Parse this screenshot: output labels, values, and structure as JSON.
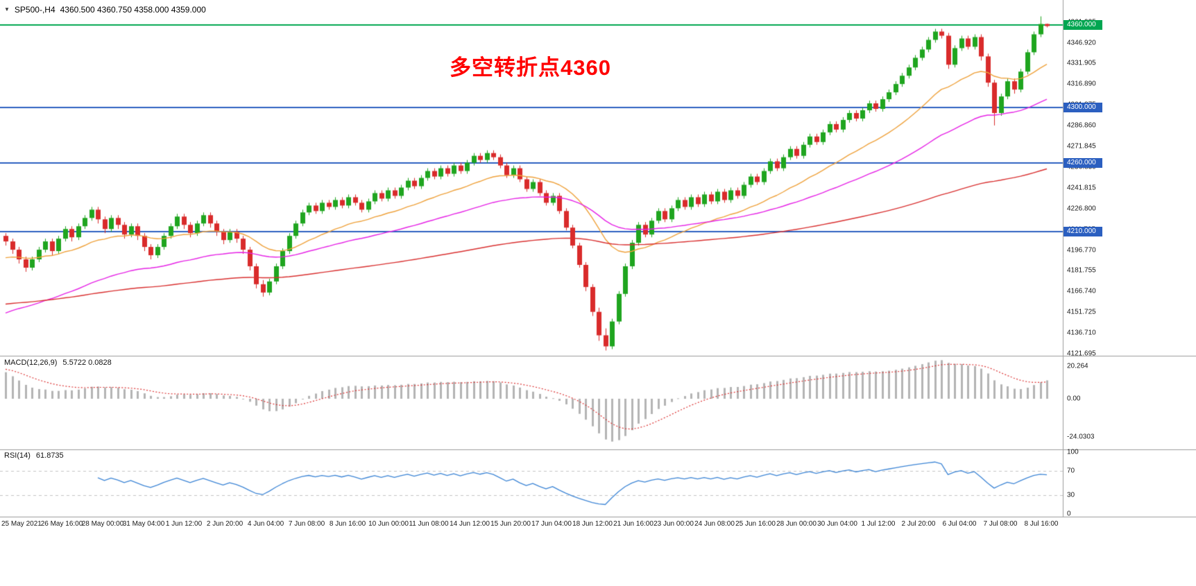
{
  "chart": {
    "symbol_period": "SP500-,H4",
    "ohlc_line": "4360.500 4360.750 4358.000 4359.000",
    "icons": {
      "menu": "▼"
    },
    "annotation": {
      "text": "多空转折点4360",
      "color": "#ff0000"
    }
  },
  "chart_data": {
    "type": "candlestick",
    "symbol": "SP500-",
    "timeframe": "H4",
    "title": "SP500-,H4 4360.500 4360.750 4358.000 4359.000",
    "current_bar": {
      "open": 4360.5,
      "high": 4360.75,
      "low": 4358.0,
      "close": 4359.0
    },
    "colors": {
      "up": "#1fa51f",
      "down": "#d92b2b",
      "background": "#ffffff"
    },
    "price_axis": {
      "top_price": 4363.8,
      "bottom_price": 4121.695,
      "labels": [
        "4361.935",
        "4346.920",
        "4331.905",
        "4316.890",
        "4301.875",
        "4286.860",
        "4271.845",
        "4256.830",
        "4241.815",
        "4226.800",
        "4211.785",
        "4196.770",
        "4181.755",
        "4166.740",
        "4151.725",
        "4136.710",
        "4121.695"
      ]
    },
    "time_labels": [
      "25 May 2021",
      "26 May 16:00",
      "28 May 00:00",
      "31 May 04:00",
      "1 Jun 12:00",
      "2 Jun 20:00",
      "4 Jun 04:00",
      "7 Jun 08:00",
      "8 Jun 16:00",
      "10 Jun 00:00",
      "11 Jun 08:00",
      "14 Jun 12:00",
      "15 Jun 20:00",
      "17 Jun 04:00",
      "18 Jun 12:00",
      "21 Jun 16:00",
      "23 Jun 00:00",
      "24 Jun 08:00",
      "25 Jun 16:00",
      "28 Jun 00:00",
      "30 Jun 04:00",
      "1 Jul 12:00",
      "2 Jul 20:00",
      "6 Jul 04:00",
      "7 Jul 08:00",
      "8 Jul 16:00"
    ],
    "horizontal_lines": [
      {
        "price": 4360.0,
        "label": "4360.000",
        "color": "#00a651"
      },
      {
        "price": 4300.0,
        "label": "4300.000",
        "color": "#2b5fc0"
      },
      {
        "price": 4260.0,
        "label": "4260.000",
        "color": "#2b5fc0"
      },
      {
        "price": 4210.0,
        "label": "4210.000",
        "color": "#2b5fc0"
      }
    ],
    "moving_averages": [
      {
        "period": 21,
        "color": "#efa23c",
        "seed": 4190
      },
      {
        "period": 50,
        "color": "#e623e6",
        "seed": 4149
      },
      {
        "period": 150,
        "color": "#d93030",
        "seed": 4157
      }
    ],
    "indicators": {
      "macd": {
        "label": "MACD(12,26,9)",
        "values": "5.5722 0.0828",
        "fast": 12,
        "slow": 26,
        "signal": 9,
        "seed_fast": 4215,
        "seed_slow": 4196,
        "seed_signal": 19,
        "histogram_color": "#b4b4b4",
        "signal_color": "#dd3333",
        "axis_labels": [
          {
            "value": 20.264,
            "text": "20.264"
          },
          {
            "value": 0,
            "text": "0.00"
          },
          {
            "value": -24.0303,
            "text": "-24.0303"
          }
        ]
      },
      "rsi": {
        "label": "RSI(14)",
        "value": "61.8735",
        "period": 14,
        "line_color": "#3e86d6",
        "levels": [
          70,
          30
        ],
        "axis_labels": [
          {
            "value": 100,
            "text": "100"
          },
          {
            "value": 70,
            "text": "70"
          },
          {
            "value": 30,
            "text": "30"
          },
          {
            "value": 0,
            "text": "0"
          }
        ]
      }
    },
    "candles": [
      [
        4207,
        4209,
        4200,
        4203
      ],
      [
        4203,
        4205,
        4194,
        4197
      ],
      [
        4197,
        4199,
        4187,
        4190
      ],
      [
        4190,
        4192,
        4181,
        4184
      ],
      [
        4184,
        4192,
        4182,
        4190
      ],
      [
        4190,
        4199,
        4188,
        4197
      ],
      [
        4197,
        4205,
        4195,
        4203
      ],
      [
        4203,
        4205,
        4193,
        4196
      ],
      [
        4196,
        4207,
        4194,
        4205
      ],
      [
        4205,
        4214,
        4203,
        4212
      ],
      [
        4212,
        4214,
        4203,
        4206
      ],
      [
        4206,
        4216,
        4204,
        4214
      ],
      [
        4214,
        4222,
        4212,
        4220
      ],
      [
        4220,
        4228,
        4218,
        4226
      ],
      [
        4226,
        4228,
        4216,
        4219
      ],
      [
        4219,
        4221,
        4209,
        4212
      ],
      [
        4212,
        4222,
        4210,
        4220
      ],
      [
        4220,
        4222,
        4212,
        4215
      ],
      [
        4215,
        4217,
        4205,
        4208
      ],
      [
        4208,
        4216,
        4206,
        4214
      ],
      [
        4214,
        4216,
        4204,
        4207
      ],
      [
        4207,
        4209,
        4196,
        4199
      ],
      [
        4199,
        4201,
        4190,
        4193
      ],
      [
        4193,
        4201,
        4191,
        4199
      ],
      [
        4199,
        4209,
        4197,
        4207
      ],
      [
        4207,
        4216,
        4205,
        4214
      ],
      [
        4214,
        4223,
        4212,
        4221
      ],
      [
        4221,
        4223,
        4212,
        4215
      ],
      [
        4215,
        4217,
        4206,
        4209
      ],
      [
        4209,
        4218,
        4207,
        4216
      ],
      [
        4216,
        4224,
        4214,
        4222
      ],
      [
        4222,
        4224,
        4213,
        4216
      ],
      [
        4216,
        4218,
        4207,
        4210
      ],
      [
        4210,
        4212,
        4201,
        4204
      ],
      [
        4204,
        4212,
        4202,
        4210
      ],
      [
        4210,
        4212,
        4202,
        4205
      ],
      [
        4205,
        4207,
        4194,
        4197
      ],
      [
        4197,
        4199,
        4182,
        4185
      ],
      [
        4185,
        4187,
        4169,
        4172
      ],
      [
        4172,
        4175,
        4163,
        4166
      ],
      [
        4166,
        4176,
        4164,
        4174
      ],
      [
        4174,
        4187,
        4172,
        4185
      ],
      [
        4185,
        4198,
        4183,
        4196
      ],
      [
        4196,
        4209,
        4194,
        4207
      ],
      [
        4207,
        4218,
        4205,
        4216
      ],
      [
        4216,
        4226,
        4214,
        4224
      ],
      [
        4224,
        4231,
        4222,
        4229
      ],
      [
        4229,
        4231,
        4223,
        4225
      ],
      [
        4225,
        4233,
        4223,
        4231
      ],
      [
        4231,
        4233,
        4226,
        4228
      ],
      [
        4228,
        4235,
        4226,
        4233
      ],
      [
        4233,
        4235,
        4227,
        4229
      ],
      [
        4229,
        4237,
        4227,
        4235
      ],
      [
        4235,
        4237,
        4229,
        4231
      ],
      [
        4231,
        4233,
        4224,
        4226
      ],
      [
        4226,
        4234,
        4224,
        4232
      ],
      [
        4232,
        4240,
        4230,
        4238
      ],
      [
        4238,
        4240,
        4232,
        4234
      ],
      [
        4234,
        4242,
        4232,
        4240
      ],
      [
        4240,
        4242,
        4234,
        4236
      ],
      [
        4236,
        4244,
        4234,
        4242
      ],
      [
        4242,
        4249,
        4240,
        4247
      ],
      [
        4247,
        4249,
        4241,
        4243
      ],
      [
        4243,
        4251,
        4241,
        4249
      ],
      [
        4249,
        4256,
        4247,
        4254
      ],
      [
        4254,
        4256,
        4248,
        4250
      ],
      [
        4250,
        4258,
        4248,
        4256
      ],
      [
        4256,
        4258,
        4250,
        4252
      ],
      [
        4252,
        4260,
        4250,
        4258
      ],
      [
        4258,
        4260,
        4252,
        4254
      ],
      [
        4254,
        4262,
        4252,
        4260
      ],
      [
        4260,
        4267,
        4258,
        4265
      ],
      [
        4265,
        4267,
        4260,
        4262
      ],
      [
        4262,
        4269,
        4260,
        4267
      ],
      [
        4267,
        4269,
        4262,
        4264
      ],
      [
        4264,
        4266,
        4256,
        4258
      ],
      [
        4258,
        4260,
        4249,
        4251
      ],
      [
        4251,
        4258,
        4249,
        4256
      ],
      [
        4256,
        4258,
        4246,
        4248
      ],
      [
        4248,
        4250,
        4239,
        4241
      ],
      [
        4241,
        4248,
        4239,
        4246
      ],
      [
        4246,
        4248,
        4236,
        4238
      ],
      [
        4238,
        4240,
        4229,
        4231
      ],
      [
        4231,
        4238,
        4229,
        4236
      ],
      [
        4236,
        4238,
        4223,
        4225
      ],
      [
        4225,
        4227,
        4211,
        4213
      ],
      [
        4213,
        4215,
        4198,
        4200
      ],
      [
        4200,
        4202,
        4184,
        4186
      ],
      [
        4186,
        4188,
        4167,
        4170
      ],
      [
        4170,
        4172,
        4149,
        4152
      ],
      [
        4152,
        4155,
        4131,
        4135
      ],
      [
        4135,
        4140,
        4124,
        4127
      ],
      [
        4127,
        4147,
        4125,
        4145
      ],
      [
        4145,
        4167,
        4143,
        4165
      ],
      [
        4165,
        4187,
        4163,
        4185
      ],
      [
        4185,
        4204,
        4183,
        4202
      ],
      [
        4202,
        4217,
        4200,
        4215
      ],
      [
        4215,
        4217,
        4206,
        4208
      ],
      [
        4208,
        4220,
        4206,
        4218
      ],
      [
        4218,
        4227,
        4216,
        4225
      ],
      [
        4225,
        4227,
        4217,
        4219
      ],
      [
        4219,
        4229,
        4217,
        4227
      ],
      [
        4227,
        4235,
        4225,
        4233
      ],
      [
        4233,
        4235,
        4226,
        4228
      ],
      [
        4228,
        4237,
        4226,
        4235
      ],
      [
        4235,
        4237,
        4228,
        4230
      ],
      [
        4230,
        4239,
        4228,
        4237
      ],
      [
        4237,
        4239,
        4230,
        4232
      ],
      [
        4232,
        4241,
        4230,
        4239
      ],
      [
        4239,
        4241,
        4231,
        4233
      ],
      [
        4233,
        4242,
        4231,
        4240
      ],
      [
        4240,
        4242,
        4234,
        4236
      ],
      [
        4236,
        4246,
        4234,
        4244
      ],
      [
        4244,
        4252,
        4242,
        4250
      ],
      [
        4250,
        4252,
        4244,
        4246
      ],
      [
        4246,
        4256,
        4244,
        4254
      ],
      [
        4254,
        4263,
        4252,
        4261
      ],
      [
        4261,
        4263,
        4254,
        4256
      ],
      [
        4256,
        4266,
        4254,
        4264
      ],
      [
        4264,
        4272,
        4262,
        4270
      ],
      [
        4270,
        4272,
        4263,
        4265
      ],
      [
        4265,
        4275,
        4263,
        4273
      ],
      [
        4273,
        4281,
        4271,
        4279
      ],
      [
        4279,
        4281,
        4273,
        4275
      ],
      [
        4275,
        4284,
        4273,
        4282
      ],
      [
        4282,
        4290,
        4280,
        4288
      ],
      [
        4288,
        4290,
        4282,
        4284
      ],
      [
        4284,
        4293,
        4282,
        4291
      ],
      [
        4291,
        4298,
        4289,
        4296
      ],
      [
        4296,
        4298,
        4290,
        4292
      ],
      [
        4292,
        4300,
        4290,
        4298
      ],
      [
        4298,
        4305,
        4296,
        4303
      ],
      [
        4303,
        4305,
        4297,
        4299
      ],
      [
        4299,
        4308,
        4297,
        4306
      ],
      [
        4306,
        4313,
        4304,
        4311
      ],
      [
        4311,
        4319,
        4309,
        4317
      ],
      [
        4317,
        4325,
        4315,
        4323
      ],
      [
        4323,
        4331,
        4321,
        4329
      ],
      [
        4329,
        4338,
        4327,
        4336
      ],
      [
        4336,
        4344,
        4334,
        4342
      ],
      [
        4342,
        4351,
        4340,
        4349
      ],
      [
        4349,
        4357,
        4347,
        4355
      ],
      [
        4355,
        4357,
        4350,
        4352
      ],
      [
        4352,
        4354,
        4328,
        4331
      ],
      [
        4331,
        4345,
        4329,
        4343
      ],
      [
        4343,
        4352,
        4341,
        4350
      ],
      [
        4350,
        4352,
        4342,
        4344
      ],
      [
        4344,
        4353,
        4342,
        4351
      ],
      [
        4351,
        4353,
        4334,
        4337
      ],
      [
        4337,
        4339,
        4315,
        4318
      ],
      [
        4318,
        4320,
        4287,
        4296
      ],
      [
        4296,
        4310,
        4294,
        4308
      ],
      [
        4308,
        4321,
        4306,
        4319
      ],
      [
        4319,
        4321,
        4310,
        4313
      ],
      [
        4313,
        4328,
        4311,
        4326
      ],
      [
        4326,
        4342,
        4324,
        4340
      ],
      [
        4340,
        4355,
        4338,
        4353
      ],
      [
        4353,
        4366,
        4351,
        4360.5
      ],
      [
        4360.5,
        4360.75,
        4358,
        4359
      ]
    ]
  }
}
